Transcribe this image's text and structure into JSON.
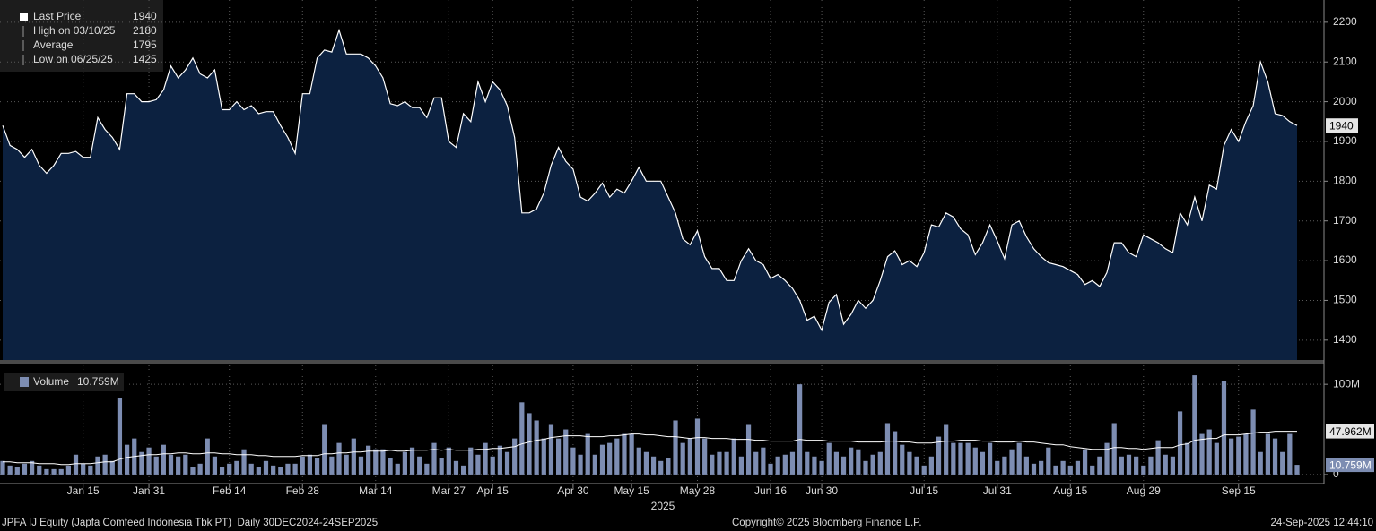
{
  "chart_data": [
    {
      "type": "area",
      "series": [
        {
          "name": "Last Price",
          "color": "#ffffff",
          "fill": "#0c2140",
          "values": [
            1940,
            1890,
            1880,
            1860,
            1880,
            1840,
            1820,
            1840,
            1870,
            1870,
            1875,
            1860,
            1860,
            1960,
            1930,
            1910,
            1880,
            2020,
            2020,
            2000,
            2000,
            2005,
            2030,
            2090,
            2060,
            2080,
            2110,
            2070,
            2060,
            2080,
            1980,
            1980,
            2000,
            1980,
            1990,
            1970,
            1975,
            1975,
            1940,
            1910,
            1870,
            2020,
            2020,
            2110,
            2130,
            2125,
            2180,
            2120,
            2120,
            2120,
            2110,
            2090,
            2060,
            1995,
            1990,
            2000,
            1985,
            1985,
            1960,
            2010,
            2010,
            1900,
            1885,
            1970,
            1950,
            2050,
            2000,
            2050,
            2030,
            1990,
            1910,
            1720,
            1720,
            1730,
            1770,
            1840,
            1885,
            1850,
            1830,
            1760,
            1750,
            1770,
            1795,
            1760,
            1780,
            1770,
            1800,
            1835,
            1800,
            1800,
            1800,
            1760,
            1720,
            1655,
            1640,
            1675,
            1610,
            1580,
            1580,
            1550,
            1550,
            1600,
            1630,
            1600,
            1590,
            1555,
            1565,
            1550,
            1530,
            1500,
            1450,
            1460,
            1425,
            1495,
            1515,
            1440,
            1465,
            1500,
            1480,
            1500,
            1550,
            1610,
            1625,
            1590,
            1600,
            1585,
            1620,
            1690,
            1685,
            1720,
            1710,
            1680,
            1665,
            1615,
            1645,
            1690,
            1650,
            1605,
            1690,
            1700,
            1660,
            1630,
            1610,
            1595,
            1590,
            1585,
            1575,
            1565,
            1540,
            1550,
            1535,
            1570,
            1645,
            1645,
            1620,
            1610,
            1665,
            1655,
            1645,
            1630,
            1620,
            1720,
            1690,
            1760,
            1700,
            1790,
            1780,
            1890,
            1930,
            1900,
            1950,
            1990,
            2100,
            2050,
            1970,
            1965,
            1950,
            1940
          ]
        }
      ],
      "ylim": [
        1350,
        2256
      ],
      "yticks": [
        1400,
        1500,
        1600,
        1700,
        1800,
        1900,
        2000,
        2100,
        2200
      ],
      "grid": true,
      "legend": [
        {
          "label": "High on 03/10/25",
          "value": 2180
        },
        {
          "label": "Average",
          "value": 1795
        },
        {
          "label": "Low on 06/25/25",
          "value": 1425
        }
      ]
    },
    {
      "type": "bar",
      "categories": [
        null,
        null,
        null,
        null,
        null,
        null,
        null,
        null,
        null,
        null,
        null,
        "Jan 15",
        null,
        null,
        null,
        null,
        null,
        null,
        null,
        null,
        "Jan 31",
        null,
        null,
        null,
        null,
        null,
        null,
        null,
        null,
        null,
        null,
        "Feb 14",
        null,
        null,
        null,
        null,
        null,
        null,
        null,
        null,
        null,
        "Feb 28",
        null,
        null,
        null,
        null,
        null,
        null,
        null,
        null,
        null,
        "Mar 14",
        null,
        null,
        null,
        null,
        null,
        null,
        null,
        null,
        null,
        "Mar 27",
        null,
        null,
        null,
        null,
        null,
        "Apr 15",
        null,
        null,
        null,
        null,
        null,
        null,
        null,
        null,
        null,
        null,
        "Apr 30",
        null,
        null,
        null,
        null,
        null,
        null,
        null,
        "May 15",
        null,
        null,
        null,
        null,
        null,
        null,
        null,
        null,
        "May 28",
        null,
        null,
        null,
        null,
        null,
        null,
        null,
        null,
        null,
        "Jun 16",
        null,
        null,
        null,
        null,
        null,
        null,
        "Jun 30",
        null,
        null,
        null,
        null,
        null,
        null,
        null,
        null,
        null,
        null,
        null,
        null,
        null,
        "Jul 15",
        null,
        null,
        null,
        null,
        null,
        null,
        null,
        null,
        null,
        "Jul 31",
        null,
        null,
        null,
        null,
        null,
        null,
        null,
        null,
        null,
        "Aug 15",
        null,
        null,
        null,
        null,
        null,
        null,
        null,
        null,
        null,
        "Aug 29",
        null,
        null,
        null,
        null,
        null,
        null,
        null,
        null,
        null,
        null,
        null,
        null,
        "Sep 15",
        null,
        null,
        null,
        null,
        null,
        null,
        null,
        null
      ],
      "series": [
        {
          "name": "Volume",
          "color": "#7d8db2",
          "tag_label": "10.759M",
          "values": [
            15,
            10,
            8,
            12,
            15,
            10,
            6,
            6,
            6,
            10,
            22,
            12,
            10,
            20,
            22,
            15,
            85,
            33,
            40,
            25,
            30,
            20,
            33,
            22,
            20,
            22,
            8,
            12,
            40,
            20,
            8,
            12,
            15,
            28,
            12,
            8,
            15,
            10,
            8,
            12,
            12,
            20,
            22,
            18,
            55,
            20,
            35,
            22,
            40,
            20,
            32,
            28,
            28,
            18,
            12,
            25,
            30,
            20,
            12,
            35,
            18,
            30,
            15,
            10,
            30,
            22,
            35,
            20,
            32,
            25,
            40,
            80,
            68,
            60,
            40,
            55,
            40,
            50,
            30,
            22,
            45,
            22,
            33,
            35,
            40,
            45,
            45,
            30,
            25,
            20,
            15,
            18,
            60,
            35,
            40,
            62,
            40,
            22,
            25,
            25,
            40,
            20,
            55,
            25,
            30,
            12,
            20,
            22,
            25,
            100,
            25,
            20,
            15,
            35,
            25,
            20,
            30,
            28,
            15,
            22,
            25,
            57,
            48,
            33,
            25,
            20,
            10,
            20,
            42,
            55,
            35,
            35,
            35,
            30,
            25,
            35,
            15,
            20,
            28,
            35,
            20,
            12,
            15,
            30,
            10,
            15,
            10,
            15,
            28,
            10,
            20,
            35,
            57,
            20,
            22,
            20,
            10,
            20,
            38,
            22,
            20,
            70,
            35,
            110,
            45,
            50,
            35,
            104,
            40,
            42,
            45,
            72,
            25,
            45,
            40,
            25,
            45,
            10.759
          ]
        },
        {
          "color": "#ffffff",
          "tag_label": "47.962M",
          "values": [
            14,
            14,
            13,
            13,
            13,
            12,
            12,
            12,
            11,
            11,
            12,
            12,
            12,
            13,
            14,
            14,
            17,
            19,
            20,
            21,
            22,
            22,
            23,
            23,
            24,
            24,
            23,
            23,
            24,
            24,
            23,
            23,
            22,
            22,
            22,
            21,
            21,
            20,
            20,
            20,
            20,
            21,
            21,
            21,
            23,
            23,
            24,
            24,
            25,
            25,
            26,
            26,
            26,
            27,
            26,
            26,
            27,
            27,
            27,
            28,
            27,
            28,
            27,
            27,
            27,
            28,
            28,
            29,
            29,
            30,
            31,
            34,
            36,
            38,
            39,
            41,
            42,
            43,
            43,
            43,
            42,
            42,
            42,
            43,
            43,
            44,
            45,
            45,
            44,
            44,
            43,
            42,
            42,
            41,
            40,
            41,
            41,
            40,
            40,
            40,
            39,
            39,
            39,
            38,
            38,
            37,
            37,
            37,
            37,
            39,
            38,
            38,
            38,
            37,
            37,
            37,
            37,
            36,
            36,
            36,
            36,
            37,
            37,
            36,
            36,
            35,
            35,
            35,
            36,
            37,
            37,
            38,
            38,
            38,
            37,
            37,
            36,
            36,
            36,
            37,
            36,
            36,
            35,
            34,
            33,
            33,
            31,
            30,
            29,
            28,
            28,
            28,
            30,
            30,
            29,
            29,
            28,
            29,
            30,
            30,
            30,
            33,
            34,
            38,
            39,
            40,
            40,
            44,
            44,
            44,
            45,
            46,
            47,
            47,
            48,
            48,
            48,
            47.962
          ]
        }
      ],
      "ylim": [
        -10,
        121
      ],
      "yticks": [
        0,
        {
          "value": 100,
          "label": "100M"
        }
      ],
      "grid": true,
      "x_label": "2025"
    }
  ],
  "footer": {
    "left": "JPFA IJ Equity (Japfa Comfeed Indonesia Tbk PT)  Daily 30DEC2024-24SEP2025",
    "center": "Copyright© 2025 Bloomberg Finance L.P.",
    "right": "24-Sep-2025 12:44:10"
  }
}
